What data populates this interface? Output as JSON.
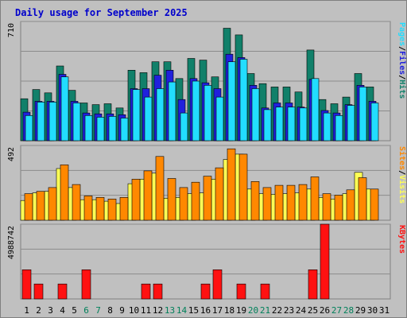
{
  "chart_data": [
    {
      "type": "bar",
      "title": "Daily usage for September 2025",
      "y_max_label": "710",
      "ylim": [
        0,
        710
      ],
      "grid": true,
      "legend": "right-vertical",
      "categories": [
        "1",
        "2",
        "3",
        "4",
        "5",
        "6",
        "7",
        "8",
        "9",
        "10",
        "11",
        "12",
        "13",
        "14",
        "15",
        "16",
        "17",
        "18",
        "19",
        "20",
        "21",
        "22",
        "23",
        "24",
        "25",
        "26",
        "27",
        "28",
        "29",
        "30",
        "31"
      ],
      "series": [
        {
          "name": "Hits",
          "color": "#11806a",
          "values": [
            250,
            305,
            285,
            445,
            300,
            225,
            215,
            220,
            195,
            420,
            405,
            470,
            470,
            370,
            490,
            480,
            380,
            670,
            630,
            400,
            340,
            320,
            320,
            290,
            540,
            245,
            220,
            260,
            400,
            320,
            0
          ]
        },
        {
          "name": "Files",
          "color": "#2020dd",
          "values": [
            170,
            235,
            235,
            395,
            235,
            165,
            160,
            160,
            155,
            310,
            310,
            390,
            420,
            245,
            370,
            345,
            310,
            515,
            495,
            330,
            195,
            225,
            225,
            200,
            365,
            180,
            165,
            215,
            330,
            235,
            0
          ]
        },
        {
          "name": "Pages",
          "color": "#22ddff",
          "values": [
            150,
            230,
            230,
            380,
            225,
            150,
            140,
            145,
            135,
            305,
            260,
            310,
            350,
            165,
            355,
            330,
            260,
            470,
            485,
            310,
            185,
            200,
            200,
            195,
            370,
            165,
            150,
            210,
            320,
            225,
            0
          ]
        }
      ]
    },
    {
      "type": "bar",
      "y_max_label": "492",
      "ylim": [
        0,
        492
      ],
      "grid": true,
      "legend": "right-vertical",
      "categories": [
        "1",
        "2",
        "3",
        "4",
        "5",
        "6",
        "7",
        "8",
        "9",
        "10",
        "11",
        "12",
        "13",
        "14",
        "15",
        "16",
        "17",
        "18",
        "19",
        "20",
        "21",
        "22",
        "23",
        "24",
        "25",
        "26",
        "27",
        "28",
        "29",
        "30",
        "31"
      ],
      "series": [
        {
          "name": "Visits",
          "color": "#ffff55",
          "values": [
            130,
            180,
            190,
            340,
            215,
            135,
            135,
            125,
            110,
            240,
            270,
            310,
            145,
            150,
            175,
            180,
            270,
            400,
            435,
            205,
            175,
            170,
            175,
            180,
            205,
            150,
            140,
            175,
            315,
            205,
            0
          ]
        },
        {
          "name": "Sites",
          "color": "#ff8800",
          "values": [
            175,
            190,
            215,
            365,
            235,
            160,
            150,
            140,
            150,
            270,
            325,
            420,
            275,
            215,
            250,
            290,
            345,
            470,
            435,
            255,
            215,
            230,
            230,
            235,
            285,
            175,
            165,
            200,
            280,
            205,
            0
          ]
        }
      ]
    },
    {
      "type": "bar",
      "y_max_label": "4988742",
      "ylim": [
        0,
        4988742
      ],
      "grid": true,
      "legend": "right-vertical",
      "categories": [
        "1",
        "2",
        "3",
        "4",
        "5",
        "6",
        "7",
        "8",
        "9",
        "10",
        "11",
        "12",
        "13",
        "14",
        "15",
        "16",
        "17",
        "18",
        "19",
        "20",
        "21",
        "22",
        "23",
        "24",
        "25",
        "26",
        "27",
        "28",
        "29",
        "30",
        "31"
      ],
      "series": [
        {
          "name": "KBytes",
          "color": "#ff1111",
          "values": [
            1950000,
            1000000,
            0,
            1000000,
            0,
            1950000,
            0,
            0,
            0,
            0,
            1000000,
            1000000,
            0,
            0,
            0,
            1000000,
            1950000,
            0,
            1000000,
            0,
            1000000,
            0,
            0,
            0,
            1950000,
            4988742,
            0,
            0,
            0,
            0,
            0
          ]
        }
      ]
    }
  ],
  "x_axis": {
    "labels": [
      "1",
      "2",
      "3",
      "4",
      "5",
      "6",
      "7",
      "8",
      "9",
      "10",
      "11",
      "12",
      "13",
      "14",
      "15",
      "16",
      "17",
      "18",
      "19",
      "20",
      "21",
      "22",
      "23",
      "24",
      "25",
      "26",
      "27",
      "28",
      "29",
      "30",
      "31"
    ],
    "weekend": [
      6,
      7,
      13,
      14,
      20,
      21,
      27,
      28
    ],
    "weekday_color": "#000000",
    "weekend_color": "#00805a"
  },
  "legend_sep": "/"
}
